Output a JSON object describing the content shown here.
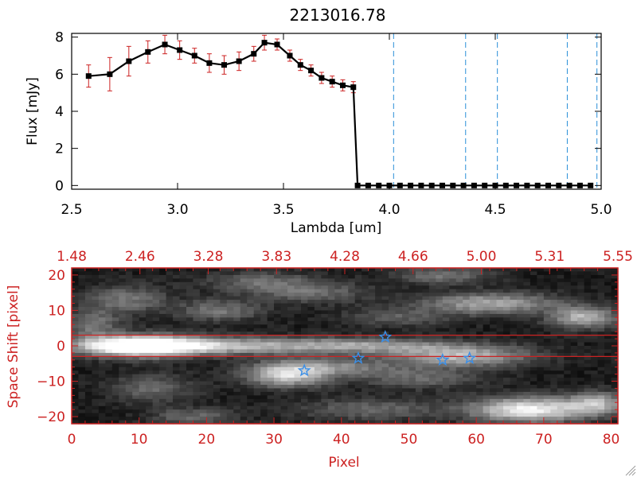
{
  "chart_data": [
    {
      "type": "line",
      "title": "2213016.78",
      "xlabel": "Lambda [um]",
      "ylabel": "Flux [mJy]",
      "xlim": [
        2.5,
        5.0
      ],
      "ylim": [
        -0.2,
        8.2
      ],
      "xticks": [
        2.5,
        3.0,
        3.5,
        4.0,
        4.5,
        5.0
      ],
      "xtick_labels": [
        "2.5",
        "3.0",
        "3.5",
        "4.0",
        "4.5",
        "5.0"
      ],
      "yticks": [
        0,
        2,
        4,
        6,
        8
      ],
      "ytick_labels": [
        "0",
        "2",
        "4",
        "6",
        "8"
      ],
      "series": [
        {
          "name": "flux",
          "color": "#000000",
          "errcolor": "#cc2222",
          "x": [
            2.58,
            2.68,
            2.77,
            2.86,
            2.94,
            3.01,
            3.08,
            3.15,
            3.22,
            3.29,
            3.36,
            3.41,
            3.47,
            3.53,
            3.58,
            3.63,
            3.68,
            3.73,
            3.78,
            3.83,
            3.85,
            3.9,
            3.95,
            4.0,
            4.05,
            4.1,
            4.15,
            4.2,
            4.25,
            4.3,
            4.35,
            4.4,
            4.45,
            4.5,
            4.55,
            4.6,
            4.65,
            4.7,
            4.75,
            4.8,
            4.85,
            4.9,
            4.95
          ],
          "y": [
            5.9,
            6.0,
            6.7,
            7.2,
            7.6,
            7.3,
            7.0,
            6.6,
            6.5,
            6.7,
            7.1,
            7.7,
            7.6,
            7.0,
            6.5,
            6.2,
            5.8,
            5.6,
            5.4,
            5.3,
            0.0,
            0.0,
            0.0,
            0.0,
            0.0,
            0.0,
            0.0,
            0.0,
            0.0,
            0.0,
            0.0,
            0.0,
            0.0,
            0.0,
            0.0,
            0.0,
            0.0,
            0.0,
            0.0,
            0.0,
            0.0,
            0.0,
            0.0
          ],
          "err": [
            0.6,
            0.9,
            0.8,
            0.6,
            0.5,
            0.5,
            0.4,
            0.5,
            0.5,
            0.5,
            0.4,
            0.4,
            0.3,
            0.3,
            0.3,
            0.3,
            0.3,
            0.3,
            0.3,
            0.3,
            0,
            0,
            0,
            0,
            0,
            0,
            0,
            0,
            0,
            0,
            0,
            0,
            0,
            0,
            0,
            0,
            0,
            0,
            0,
            0,
            0,
            0,
            0
          ]
        }
      ],
      "vlines": [
        4.02,
        4.36,
        4.51,
        4.84,
        4.98
      ],
      "vline_color": "#2a8fd8"
    },
    {
      "type": "heatmap",
      "xlabel": "Pixel",
      "ylabel": "Space Shift [pixel]",
      "xlim": [
        0,
        81
      ],
      "ylim": [
        -22,
        22
      ],
      "xticks": [
        0,
        10,
        20,
        30,
        40,
        50,
        60,
        70,
        80
      ],
      "xtick_labels": [
        "0",
        "10",
        "20",
        "30",
        "40",
        "50",
        "60",
        "70",
        "80"
      ],
      "yticks": [
        -20,
        -10,
        0,
        10,
        20
      ],
      "ytick_labels": [
        "−20",
        "−10",
        "0",
        "10",
        "20"
      ],
      "top_axis_labels": [
        "1.48",
        "2.46",
        "3.28",
        "3.83",
        "4.28",
        "4.66",
        "5.00",
        "5.31",
        "5.55"
      ],
      "hlines": [
        3,
        -3
      ],
      "hline_color": "#cc2222",
      "blobs": [
        {
          "x": 10,
          "y": 0,
          "w": 9,
          "h": 3,
          "v": 1.0
        },
        {
          "x": 22,
          "y": 0,
          "w": 18,
          "h": 2.4,
          "v": 0.55
        },
        {
          "x": 45,
          "y": 0,
          "w": 14,
          "h": 2.2,
          "v": 0.42
        },
        {
          "x": 58,
          "y": -3,
          "w": 10,
          "h": 2.8,
          "v": 0.6
        },
        {
          "x": 32,
          "y": -8,
          "w": 6,
          "h": 3.5,
          "v": 0.75
        },
        {
          "x": 40,
          "y": -6,
          "w": 8,
          "h": 2.5,
          "v": 0.35
        },
        {
          "x": 52,
          "y": -9,
          "w": 9,
          "h": 3,
          "v": 0.3
        },
        {
          "x": 68,
          "y": -18,
          "w": 9,
          "h": 3.5,
          "v": 0.85
        },
        {
          "x": 78,
          "y": -16,
          "w": 4,
          "h": 3,
          "v": 0.5
        },
        {
          "x": 62,
          "y": 12,
          "w": 10,
          "h": 3,
          "v": 0.55
        },
        {
          "x": 76,
          "y": 8,
          "w": 5,
          "h": 3,
          "v": 0.6
        },
        {
          "x": 8,
          "y": 13,
          "w": 6,
          "h": 4,
          "v": 0.35
        },
        {
          "x": 22,
          "y": 10,
          "w": 6,
          "h": 3,
          "v": 0.35
        },
        {
          "x": 36,
          "y": 15,
          "w": 8,
          "h": 3,
          "v": 0.3
        },
        {
          "x": 12,
          "y": -12,
          "w": 6,
          "h": 4,
          "v": 0.3
        },
        {
          "x": 3,
          "y": 6,
          "w": 4,
          "h": 4,
          "v": 0.35
        },
        {
          "x": 48,
          "y": 8,
          "w": 8,
          "h": 2.5,
          "v": 0.25
        },
        {
          "x": 28,
          "y": 18,
          "w": 8,
          "h": 3,
          "v": 0.3
        },
        {
          "x": 55,
          "y": 20,
          "w": 7,
          "h": 2.5,
          "v": 0.35
        },
        {
          "x": 44,
          "y": -18,
          "w": 10,
          "h": 3,
          "v": 0.3
        },
        {
          "x": 18,
          "y": -20,
          "w": 6,
          "h": 2.5,
          "v": 0.3
        }
      ],
      "stars": [
        {
          "x": 34.5,
          "y": -7
        },
        {
          "x": 42.5,
          "y": -3.5
        },
        {
          "x": 46.5,
          "y": 2.5
        },
        {
          "x": 55,
          "y": -4
        },
        {
          "x": 59,
          "y": -3.5
        }
      ],
      "star_color": "#3a8fe8"
    }
  ]
}
